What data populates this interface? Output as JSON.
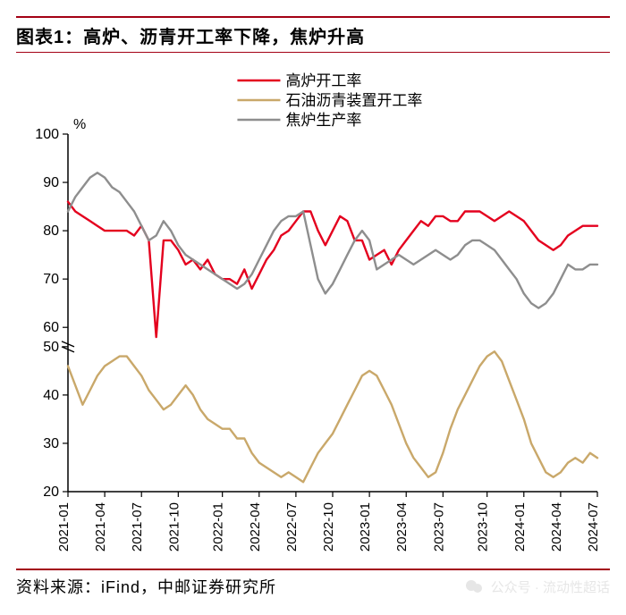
{
  "title": "图表1：高炉、沥青开工率下降，焦炉升高",
  "title_fontsize": 20,
  "title_color": "#000000",
  "rule_color": "#a30014",
  "footer_source": "资料来源：iFind，中邮证券研究所",
  "footer_fontsize": 18,
  "watermark_text": "公众号 · 流动性超话",
  "watermark_color": "#b8b8b8",
  "chart": {
    "type": "line",
    "background_color": "#ffffff",
    "axis_color": "#000000",
    "axis_width": 1.5,
    "tick_fontsize": 16,
    "tick_color": "#000000",
    "y_unit_label": "%",
    "y_breaks": [
      54,
      56
    ],
    "ylim_low": [
      20,
      50
    ],
    "ylim_high": [
      56,
      100
    ],
    "ytick_step": 10,
    "yticks_low": [
      20,
      30,
      40,
      50
    ],
    "yticks_high": [
      60,
      70,
      80,
      90,
      100
    ],
    "x_categories": [
      "2021-01",
      "2021-04",
      "2021-07",
      "2021-10",
      "2022-01",
      "2022-04",
      "2022-07",
      "2022-10",
      "2023-01",
      "2023-04",
      "2023-07",
      "2023-10",
      "2024-01",
      "2024-04",
      "2024-07"
    ],
    "x_label_rotation": -90,
    "legend": {
      "position": "top-center",
      "fontsize": 17,
      "items": [
        {
          "label": "高炉开工率",
          "color": "#e4001e"
        },
        {
          "label": "石油沥青装置开工率",
          "color": "#c9a86a"
        },
        {
          "label": "焦炉生产率",
          "color": "#8e8e8e"
        }
      ]
    },
    "line_width": 2.4,
    "series": [
      {
        "name": "高炉开工率",
        "color": "#e4001e",
        "values": [
          86,
          84,
          83,
          82,
          81,
          80,
          80,
          80,
          80,
          79,
          81,
          78,
          58,
          78,
          78,
          76,
          73,
          74,
          72,
          74,
          71,
          70,
          70,
          69,
          72,
          68,
          71,
          74,
          76,
          79,
          80,
          82,
          84,
          84,
          80,
          77,
          80,
          83,
          82,
          78,
          78,
          74,
          75,
          76,
          73,
          76,
          78,
          80,
          82,
          81,
          83,
          83,
          82,
          82,
          84,
          84,
          84,
          83,
          82,
          83,
          84,
          83,
          82,
          80,
          78,
          77,
          76,
          77,
          79,
          80,
          81,
          81,
          81
        ]
      },
      {
        "name": "石油沥青装置开工率",
        "color": "#c9a86a",
        "values": [
          46,
          42,
          38,
          41,
          44,
          46,
          47,
          48,
          48,
          46,
          44,
          41,
          39,
          37,
          38,
          40,
          42,
          40,
          37,
          35,
          34,
          33,
          33,
          31,
          31,
          28,
          26,
          25,
          24,
          23,
          24,
          23,
          22,
          25,
          28,
          30,
          32,
          35,
          38,
          41,
          44,
          45,
          44,
          41,
          38,
          34,
          30,
          27,
          25,
          23,
          24,
          28,
          33,
          37,
          40,
          43,
          46,
          48,
          49,
          47,
          43,
          39,
          35,
          30,
          27,
          24,
          23,
          24,
          26,
          27,
          26,
          28,
          27
        ]
      },
      {
        "name": "焦炉生产率",
        "color": "#8e8e8e",
        "values": [
          84,
          87,
          89,
          91,
          92,
          91,
          89,
          88,
          86,
          84,
          81,
          78,
          79,
          82,
          80,
          77,
          75,
          74,
          73,
          72,
          71,
          70,
          69,
          68,
          69,
          71,
          74,
          77,
          80,
          82,
          83,
          83,
          84,
          77,
          70,
          67,
          69,
          72,
          75,
          78,
          80,
          78,
          72,
          73,
          74,
          75,
          74,
          73,
          74,
          75,
          76,
          75,
          74,
          75,
          77,
          78,
          78,
          77,
          76,
          74,
          72,
          70,
          67,
          65,
          64,
          65,
          67,
          70,
          73,
          72,
          72,
          73,
          73
        ]
      }
    ]
  }
}
